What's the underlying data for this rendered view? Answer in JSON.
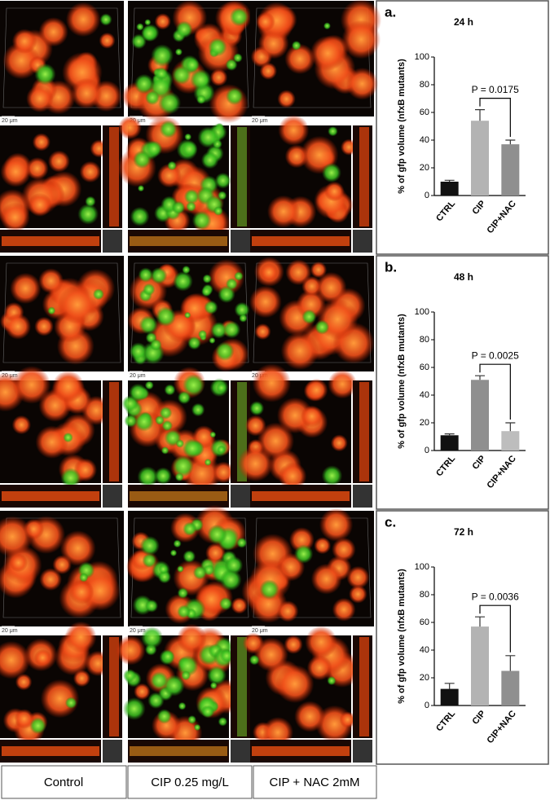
{
  "column_labels": [
    "Control",
    "CIP 0.25 mg/L",
    "CIP + NAC 2mM"
  ],
  "scale_bar_label": "20 μm",
  "chart_data": [
    {
      "type": "bar",
      "panel_label": "a.",
      "title": "24 h",
      "ylabel": "% of gfp volume (nfxB mutants)",
      "categories": [
        "CTRL",
        "CIP",
        "CIP+NAC"
      ],
      "values": [
        10,
        54,
        37
      ],
      "errors": [
        1,
        8,
        3
      ],
      "colors": [
        "#111111",
        "#b3b3b3",
        "#8f8f8f"
      ],
      "ylim": [
        0,
        100
      ],
      "yticks": [
        0,
        20,
        40,
        60,
        80,
        100
      ],
      "annotation": "P = 0.0175"
    },
    {
      "type": "bar",
      "panel_label": "b.",
      "title": "48 h",
      "ylabel": "% of gfp volume (nfxB mutants)",
      "categories": [
        "CTRL",
        "CIP",
        "CIP+NAC"
      ],
      "values": [
        11,
        51,
        14
      ],
      "errors": [
        1,
        3,
        6
      ],
      "colors": [
        "#111111",
        "#8f8f8f",
        "#bdbdbd"
      ],
      "ylim": [
        0,
        100
      ],
      "yticks": [
        0,
        20,
        40,
        60,
        80,
        100
      ],
      "annotation": "P = 0.0025"
    },
    {
      "type": "bar",
      "panel_label": "c.",
      "title": "72 h",
      "ylabel": "% of gfp volume (nfxB mutants)",
      "categories": [
        "CTRL",
        "CIP",
        "CIP+NAC"
      ],
      "values": [
        12,
        57,
        25
      ],
      "errors": [
        4,
        7,
        11
      ],
      "colors": [
        "#111111",
        "#b3b3b3",
        "#8f8f8f"
      ],
      "ylim": [
        0,
        100
      ],
      "yticks": [
        0,
        20,
        40,
        60,
        80,
        100
      ],
      "annotation": "P = 0.0036"
    }
  ]
}
